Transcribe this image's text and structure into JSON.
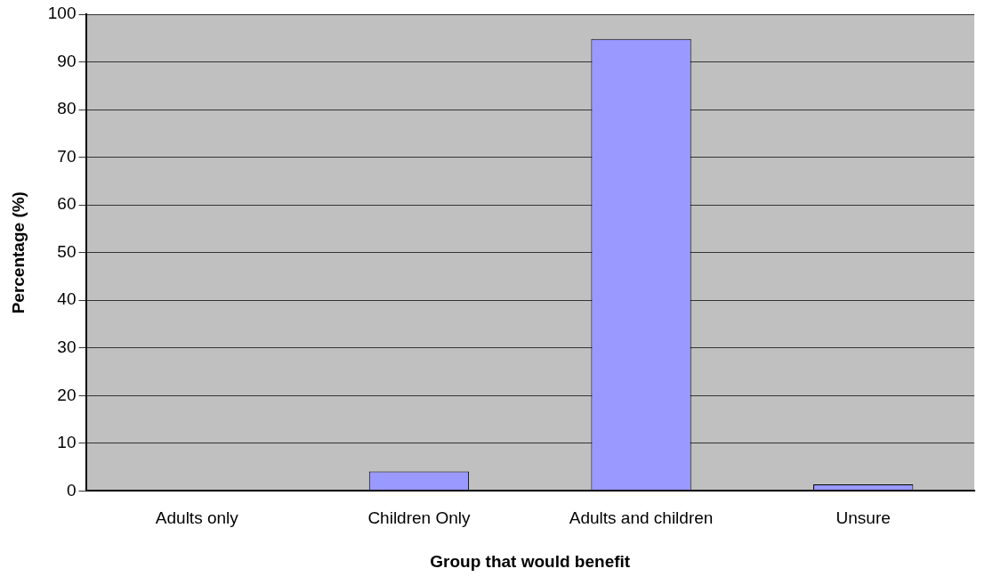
{
  "chart_data": {
    "type": "bar",
    "xlabel": "Group that would benefit",
    "ylabel": "Percentage (%)",
    "categories": [
      "Adults only",
      "Children Only",
      "Adults and children",
      "Unsure"
    ],
    "values": [
      0,
      4.1,
      94.8,
      1.4
    ],
    "color": "#9999ff",
    "ylim": [
      0,
      100
    ],
    "yticks": [
      0,
      10,
      20,
      30,
      40,
      50,
      60,
      70,
      80,
      90,
      100
    ],
    "grid": "y",
    "legend": false
  }
}
